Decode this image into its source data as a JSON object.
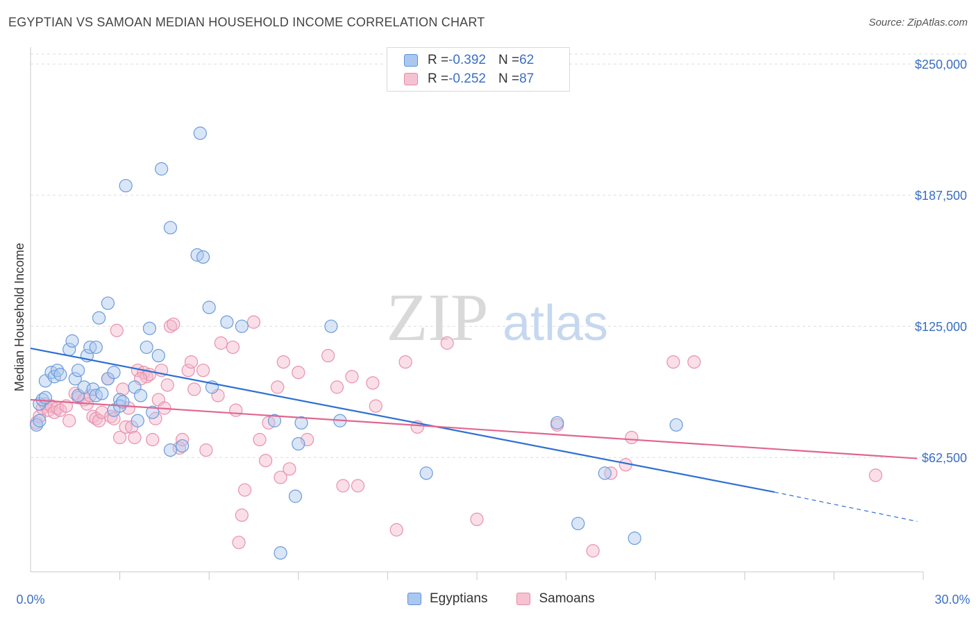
{
  "header": {
    "title": "EGYPTIAN VS SAMOAN MEDIAN HOUSEHOLD INCOME CORRELATION CHART",
    "source": "Source: ZipAtlas.com"
  },
  "watermark": {
    "zip": "ZIP",
    "atlas": "atlas"
  },
  "legend": {
    "rows": [
      {
        "r_label": "R = ",
        "r_value": "-0.392",
        "n_label": "N = ",
        "n_value": "62"
      },
      {
        "r_label": "R = ",
        "r_value": "-0.252",
        "n_label": "N = ",
        "n_value": "87"
      }
    ]
  },
  "colors": {
    "blue": "#2d6fd3",
    "blue_fill": "#aac8ef",
    "pink": "#e0668f",
    "pink_fill": "#f5b8cb",
    "axis_text": "#3a6fc4",
    "grid": "#dcdcdc"
  },
  "chart_data": {
    "type": "scatter",
    "title": "EGYPTIAN VS SAMOAN MEDIAN HOUSEHOLD INCOME CORRELATION CHART",
    "xlabel": "",
    "ylabel": "Median Household Income",
    "xlim": [
      0,
      30
    ],
    "ylim": [
      8000,
      258000
    ],
    "x_tick_labels": [
      "0.0%",
      "30.0%"
    ],
    "y_ticks": [
      62500,
      125000,
      187500,
      250000
    ],
    "y_tick_labels": [
      "$62,500",
      "$125,000",
      "$187,500",
      "$250,000"
    ],
    "grid": true,
    "legend_position": "top-center",
    "series": [
      {
        "name": "Egyptians",
        "color": "#2d6fd3",
        "trend": {
          "x_start": 0,
          "y_start": 114500,
          "x_solid_end": 25,
          "y_solid_end": 46000,
          "x_end": 29.8,
          "y_end": 32000
        },
        "points": [
          [
            0.3,
            88000
          ],
          [
            0.4,
            90000
          ],
          [
            0.5,
            99000
          ],
          [
            0.5,
            91000
          ],
          [
            0.7,
            103000
          ],
          [
            0.8,
            101000
          ],
          [
            0.9,
            104000
          ],
          [
            1.0,
            102000
          ],
          [
            1.3,
            114000
          ],
          [
            1.4,
            118000
          ],
          [
            1.5,
            100000
          ],
          [
            1.6,
            104000
          ],
          [
            1.6,
            92000
          ],
          [
            1.8,
            96000
          ],
          [
            1.9,
            111000
          ],
          [
            2.0,
            115000
          ],
          [
            2.1,
            95000
          ],
          [
            2.2,
            92000
          ],
          [
            2.2,
            115000
          ],
          [
            2.3,
            129000
          ],
          [
            2.4,
            93000
          ],
          [
            2.6,
            136000
          ],
          [
            2.6,
            100000
          ],
          [
            2.8,
            103000
          ],
          [
            2.8,
            85000
          ],
          [
            3.0,
            90000
          ],
          [
            3.0,
            87000
          ],
          [
            3.1,
            89000
          ],
          [
            3.2,
            192000
          ],
          [
            3.5,
            96000
          ],
          [
            3.6,
            80000
          ],
          [
            3.7,
            92000
          ],
          [
            3.9,
            115000
          ],
          [
            4.0,
            124000
          ],
          [
            4.1,
            84000
          ],
          [
            4.3,
            111000
          ],
          [
            4.4,
            200000
          ],
          [
            4.7,
            66000
          ],
          [
            4.7,
            172000
          ],
          [
            5.1,
            68000
          ],
          [
            5.6,
            159000
          ],
          [
            5.7,
            217000
          ],
          [
            5.8,
            158000
          ],
          [
            6.0,
            134000
          ],
          [
            6.1,
            96000
          ],
          [
            6.6,
            127000
          ],
          [
            7.1,
            125000
          ],
          [
            8.2,
            80000
          ],
          [
            8.4,
            17000
          ],
          [
            8.9,
            44000
          ],
          [
            9.0,
            69000
          ],
          [
            9.1,
            79000
          ],
          [
            10.1,
            125000
          ],
          [
            10.4,
            80000
          ],
          [
            13.3,
            55000
          ],
          [
            17.7,
            79000
          ],
          [
            18.4,
            31000
          ],
          [
            19.3,
            55000
          ],
          [
            20.3,
            24000
          ],
          [
            21.7,
            78000
          ],
          [
            0.2,
            78000
          ],
          [
            0.3,
            80000
          ]
        ]
      },
      {
        "name": "Samoans",
        "color": "#e0668f",
        "trend": {
          "x_start": 0,
          "y_start": 90000,
          "x_end": 29.8,
          "y_end": 62000
        },
        "points": [
          [
            0.2,
            79000
          ],
          [
            0.3,
            82000
          ],
          [
            0.4,
            86000
          ],
          [
            0.5,
            88000
          ],
          [
            0.6,
            85000
          ],
          [
            0.7,
            87000
          ],
          [
            0.8,
            84000
          ],
          [
            0.9,
            86000
          ],
          [
            1.0,
            85000
          ],
          [
            1.2,
            87000
          ],
          [
            1.3,
            80000
          ],
          [
            1.5,
            93000
          ],
          [
            1.6,
            91000
          ],
          [
            1.8,
            90000
          ],
          [
            1.9,
            88000
          ],
          [
            2.0,
            92000
          ],
          [
            2.1,
            82000
          ],
          [
            2.2,
            81000
          ],
          [
            2.3,
            80000
          ],
          [
            2.4,
            84000
          ],
          [
            2.6,
            100000
          ],
          [
            2.7,
            82000
          ],
          [
            2.8,
            81000
          ],
          [
            2.9,
            123000
          ],
          [
            3.0,
            72000
          ],
          [
            3.1,
            95000
          ],
          [
            3.2,
            77000
          ],
          [
            3.4,
            77000
          ],
          [
            3.5,
            72000
          ],
          [
            3.6,
            104000
          ],
          [
            3.8,
            103000
          ],
          [
            3.9,
            101000
          ],
          [
            4.0,
            102000
          ],
          [
            4.1,
            71000
          ],
          [
            4.2,
            81000
          ],
          [
            4.3,
            90000
          ],
          [
            4.4,
            104000
          ],
          [
            4.5,
            86000
          ],
          [
            4.6,
            97000
          ],
          [
            4.7,
            125000
          ],
          [
            4.8,
            126000
          ],
          [
            5.0,
            67000
          ],
          [
            5.1,
            71000
          ],
          [
            5.3,
            104000
          ],
          [
            5.4,
            108000
          ],
          [
            5.5,
            95000
          ],
          [
            5.8,
            104000
          ],
          [
            5.9,
            66000
          ],
          [
            6.3,
            92000
          ],
          [
            6.4,
            117000
          ],
          [
            6.8,
            115000
          ],
          [
            6.9,
            85000
          ],
          [
            7.0,
            22000
          ],
          [
            7.1,
            35000
          ],
          [
            7.2,
            47000
          ],
          [
            7.5,
            127000
          ],
          [
            7.7,
            71000
          ],
          [
            7.9,
            61000
          ],
          [
            8.0,
            79000
          ],
          [
            8.3,
            96000
          ],
          [
            8.4,
            53000
          ],
          [
            8.5,
            108000
          ],
          [
            8.7,
            57000
          ],
          [
            9.0,
            103000
          ],
          [
            9.3,
            71000
          ],
          [
            10.0,
            111000
          ],
          [
            10.3,
            96000
          ],
          [
            10.5,
            49000
          ],
          [
            10.8,
            101000
          ],
          [
            11.0,
            49000
          ],
          [
            11.5,
            98000
          ],
          [
            11.6,
            87000
          ],
          [
            12.3,
            28000
          ],
          [
            12.6,
            108000
          ],
          [
            13.0,
            77000
          ],
          [
            14.0,
            117000
          ],
          [
            15.0,
            33000
          ],
          [
            17.7,
            78000
          ],
          [
            18.9,
            18000
          ],
          [
            19.5,
            55000
          ],
          [
            20.0,
            59000
          ],
          [
            20.2,
            72000
          ],
          [
            21.6,
            108000
          ],
          [
            22.3,
            108000
          ],
          [
            28.4,
            54000
          ],
          [
            3.3,
            86000
          ],
          [
            3.7,
            100000
          ]
        ]
      }
    ]
  }
}
